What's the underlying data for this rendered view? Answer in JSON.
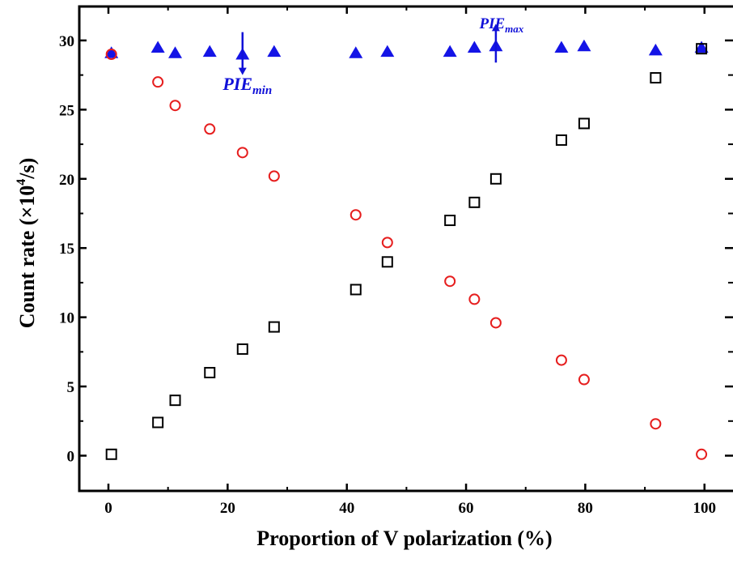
{
  "chart_data": {
    "type": "scatter",
    "title": "",
    "xlabel": "Proportion of V polarization (%)",
    "ylabel_parts": [
      "Count rate (×10",
      "4",
      "/s)"
    ],
    "xlim": [
      -3,
      103
    ],
    "ylim": [
      -2.5,
      32.5
    ],
    "xticks": [
      0,
      20,
      40,
      60,
      80,
      100
    ],
    "yticks": [
      0,
      5,
      10,
      15,
      20,
      25,
      30
    ],
    "x_minor_ticks": [
      10,
      30,
      50,
      70,
      90
    ],
    "y_minor_ticks": [
      2.5,
      7.5,
      12.5,
      17.5,
      22.5,
      27.5
    ],
    "grid": false,
    "legend": "none",
    "series": [
      {
        "marker": "triangle-filled",
        "color": "#1414e6",
        "x": [
          0.5,
          8.3,
          11.2,
          17.0,
          22.5,
          27.8,
          41.5,
          46.8,
          57.3,
          61.4,
          65.0,
          76.0,
          79.8,
          91.8,
          99.5
        ],
        "y": [
          29.1,
          29.5,
          29.1,
          29.2,
          29.0,
          29.2,
          29.1,
          29.2,
          29.2,
          29.5,
          29.6,
          29.5,
          29.6,
          29.3,
          29.5
        ]
      },
      {
        "marker": "circle-open",
        "color": "#e61e1e",
        "x": [
          0.5,
          8.3,
          11.2,
          17.0,
          22.5,
          27.8,
          41.5,
          46.8,
          57.3,
          61.4,
          65.0,
          76.0,
          79.8,
          91.8,
          99.5
        ],
        "y": [
          29.0,
          27.0,
          25.3,
          23.6,
          21.9,
          20.2,
          17.4,
          15.4,
          12.6,
          11.3,
          9.6,
          6.9,
          5.5,
          2.3,
          0.1
        ]
      },
      {
        "marker": "square-open",
        "color": "#000000",
        "x": [
          0.5,
          8.3,
          11.2,
          17.0,
          22.5,
          27.8,
          41.5,
          46.8,
          57.3,
          61.4,
          65.0,
          76.0,
          79.8,
          91.8,
          99.5
        ],
        "y": [
          0.1,
          2.4,
          4.0,
          6.0,
          7.7,
          9.3,
          12.0,
          14.0,
          17.0,
          18.3,
          20.0,
          22.8,
          24.0,
          27.3,
          29.4
        ]
      }
    ],
    "annotations": [
      {
        "base": "PIE",
        "sub": "min",
        "x": 22.5,
        "arrow_from_y": 30.6,
        "arrow_to_y": 27.5,
        "arrow": "down"
      },
      {
        "base": "PIE",
        "sub": "max",
        "x": 65.0,
        "arrow_from_y": 28.4,
        "arrow_to_y": 31.2,
        "arrow": "up"
      }
    ]
  }
}
